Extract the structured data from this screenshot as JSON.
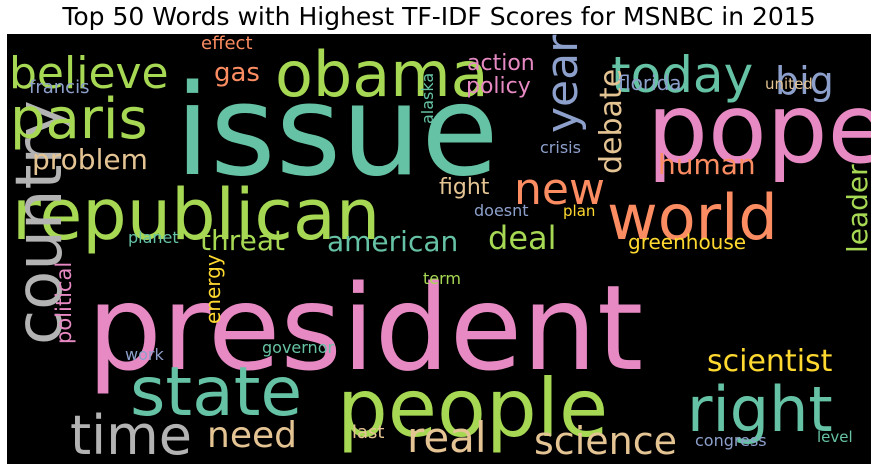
{
  "title": "Top 50 Words with Highest TF-IDF Scores for MSNBC in 2015",
  "palette": {
    "background": "#000000",
    "teal": "#66c2a5",
    "orange": "#fc8d62",
    "blue": "#8da0cb",
    "pink": "#e78ac3",
    "green": "#a6d854",
    "yellow": "#ffd92f",
    "tan": "#e5c494",
    "gray": "#b3b3b3"
  },
  "words": [
    {
      "text": "issue",
      "color": "#66c2a5"
    },
    {
      "text": "president",
      "color": "#e78ac3"
    },
    {
      "text": "people",
      "color": "#a6d854"
    },
    {
      "text": "republican",
      "color": "#a6d854"
    },
    {
      "text": "pope",
      "color": "#e78ac3"
    },
    {
      "text": "obama",
      "color": "#a6d854"
    },
    {
      "text": "world",
      "color": "#fc8d62"
    },
    {
      "text": "country",
      "color": "#b3b3b3"
    },
    {
      "text": "state",
      "color": "#66c2a5"
    },
    {
      "text": "paris",
      "color": "#a6d854"
    },
    {
      "text": "right",
      "color": "#66c2a5"
    },
    {
      "text": "time",
      "color": "#b3b3b3"
    },
    {
      "text": "today",
      "color": "#66c2a5"
    },
    {
      "text": "believe",
      "color": "#a6d854"
    },
    {
      "text": "new",
      "color": "#fc8d62"
    },
    {
      "text": "year",
      "color": "#8da0cb"
    },
    {
      "text": "real",
      "color": "#e5c494"
    },
    {
      "text": "science",
      "color": "#e5c494"
    },
    {
      "text": "need",
      "color": "#e5c494"
    },
    {
      "text": "big",
      "color": "#8da0cb"
    },
    {
      "text": "problem",
      "color": "#e5c494"
    },
    {
      "text": "debate",
      "color": "#e5c494"
    },
    {
      "text": "deal",
      "color": "#a6d854"
    },
    {
      "text": "american",
      "color": "#66c2a5"
    },
    {
      "text": "threat",
      "color": "#a6d854"
    },
    {
      "text": "scientist",
      "color": "#ffd92f"
    },
    {
      "text": "human",
      "color": "#fc8d62"
    },
    {
      "text": "leader",
      "color": "#a6d854"
    },
    {
      "text": "gas",
      "color": "#fc8d62"
    },
    {
      "text": "political",
      "color": "#e78ac3"
    },
    {
      "text": "energy",
      "color": "#ffd92f"
    },
    {
      "text": "fight",
      "color": "#e5c494"
    },
    {
      "text": "action",
      "color": "#e78ac3"
    },
    {
      "text": "policy",
      "color": "#e78ac3"
    },
    {
      "text": "greenhouse",
      "color": "#ffd92f"
    },
    {
      "text": "florida",
      "color": "#8da0cb"
    },
    {
      "text": "effect",
      "color": "#fc8d62"
    },
    {
      "text": "francis",
      "color": "#8da0cb"
    },
    {
      "text": "united",
      "color": "#e5c494"
    },
    {
      "text": "alaska",
      "color": "#66c2a5"
    },
    {
      "text": "crisis",
      "color": "#8da0cb"
    },
    {
      "text": "doesnt",
      "color": "#8da0cb"
    },
    {
      "text": "plan",
      "color": "#ffd92f"
    },
    {
      "text": "planet",
      "color": "#66c2a5"
    },
    {
      "text": "term",
      "color": "#a6d854"
    },
    {
      "text": "work",
      "color": "#8da0cb"
    },
    {
      "text": "governor",
      "color": "#66c2a5"
    },
    {
      "text": "last",
      "color": "#e5c494"
    },
    {
      "text": "congress",
      "color": "#8da0cb"
    },
    {
      "text": "level",
      "color": "#66c2a5"
    }
  ]
}
